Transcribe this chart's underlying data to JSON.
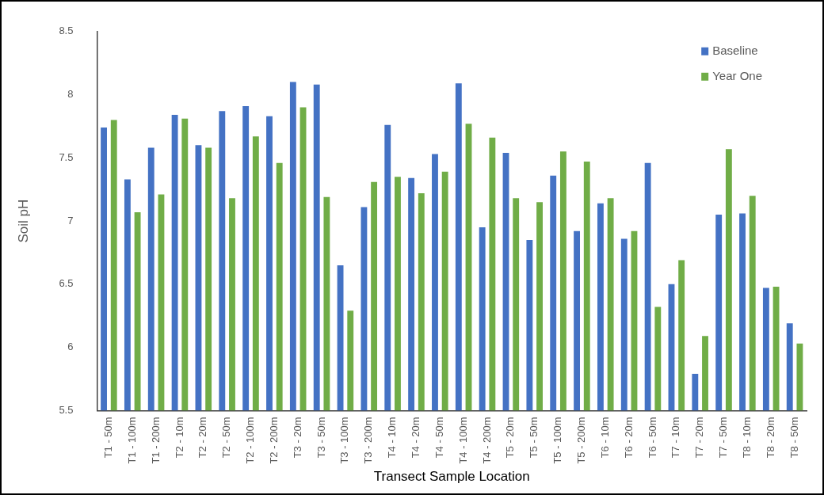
{
  "chart_data": {
    "type": "bar",
    "xlabel": "Transect Sample Location",
    "ylabel": "Soil pH",
    "categories": [
      "T1 - 50m",
      "T1 - 100m",
      "T1 - 200m",
      "T2 - 10m",
      "T2 - 20m",
      "T2 - 50m",
      "T2 - 100m",
      "T2 - 200m",
      "T3 - 20m",
      "T3 - 50m",
      "T3 - 100m",
      "T3 - 200m",
      "T4 - 10m",
      "T4 - 20m",
      "T4 - 50m",
      "T4 - 100m",
      "T4 - 200m",
      "T5 - 20m",
      "T5 - 50m",
      "T5 - 100m",
      "T5 - 200m",
      "T6 - 10m",
      "T6 - 20m",
      "T6 - 50m",
      "T7 - 10m",
      "T7 - 20m",
      "T7 - 50m",
      "T8 - 10m",
      "T8 - 20m",
      "T8 - 50m"
    ],
    "series": [
      {
        "name": "Baseline",
        "color": "#4472c4",
        "values": [
          7.74,
          7.33,
          7.58,
          7.84,
          7.6,
          7.87,
          7.91,
          7.83,
          8.1,
          8.08,
          6.65,
          7.11,
          7.76,
          7.34,
          7.53,
          8.09,
          6.95,
          7.54,
          6.85,
          7.36,
          6.92,
          7.14,
          6.86,
          7.46,
          6.5,
          5.79,
          7.05,
          7.06,
          6.47,
          6.19
        ]
      },
      {
        "name": "Year One",
        "color": "#70ad47",
        "values": [
          7.8,
          7.07,
          7.21,
          7.81,
          7.58,
          7.18,
          7.67,
          7.46,
          7.9,
          7.19,
          6.29,
          7.31,
          7.35,
          7.22,
          7.39,
          7.77,
          7.66,
          7.18,
          7.15,
          7.55,
          7.47,
          7.18,
          6.92,
          6.32,
          6.69,
          6.09,
          7.57,
          7.2,
          6.48,
          6.03
        ]
      }
    ],
    "ylim": [
      5.5,
      8.5
    ],
    "yticks": [
      5.5,
      6,
      6.5,
      7,
      7.5,
      8,
      8.5
    ],
    "grid": false,
    "legend": "top right"
  }
}
